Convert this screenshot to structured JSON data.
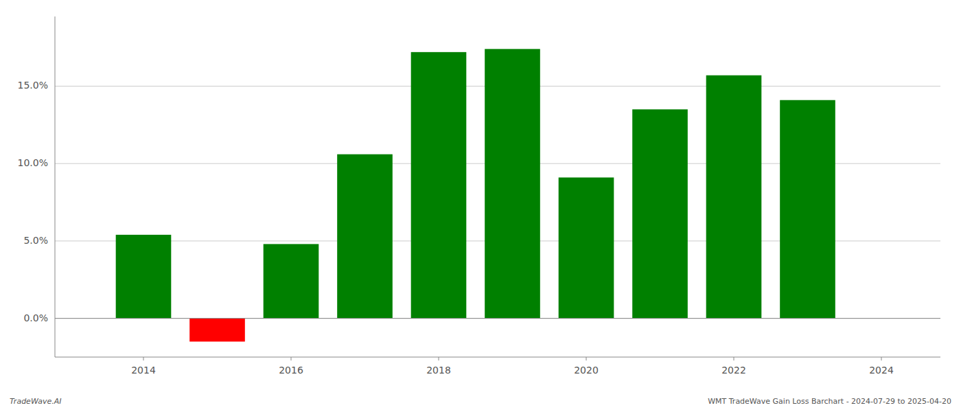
{
  "chart_data": {
    "type": "bar",
    "x": [
      2014,
      2015,
      2016,
      2017,
      2018,
      2019,
      2020,
      2021,
      2022,
      2023
    ],
    "values": [
      5.4,
      -1.5,
      4.8,
      10.6,
      17.2,
      17.4,
      9.1,
      13.5,
      15.7,
      14.1
    ],
    "colors": [
      "#008000",
      "#ff0000",
      "#008000",
      "#008000",
      "#008000",
      "#008000",
      "#008000",
      "#008000",
      "#008000",
      "#008000"
    ],
    "xlim": [
      2012.8,
      2024.8
    ],
    "xticks": [
      2014,
      2016,
      2018,
      2020,
      2022,
      2024
    ],
    "ylim": [
      -2.5,
      19.5
    ],
    "yticks": [
      {
        "value": 0,
        "label": "0.0%"
      },
      {
        "value": 5,
        "label": "5.0%"
      },
      {
        "value": 10,
        "label": "10.0%"
      },
      {
        "value": 15,
        "label": "15.0%"
      }
    ],
    "grid": true,
    "annotations": [
      "TradeWave.AI",
      "WMT TradeWave Gain Loss Barchart - 2024-07-29 to 2025-04-20"
    ]
  }
}
